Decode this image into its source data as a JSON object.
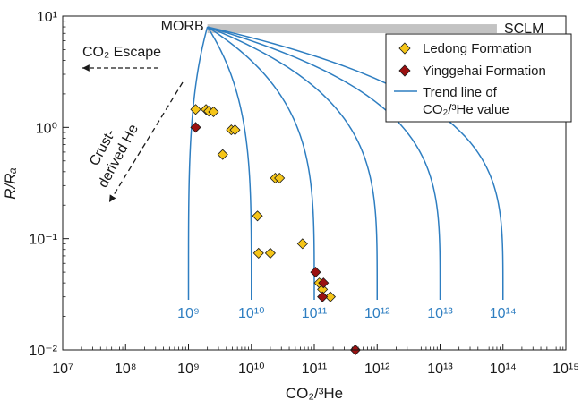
{
  "chart_data": {
    "type": "scatter",
    "xlabel": "CO₂/³He",
    "ylabel": "R/Rₐ",
    "x_scale": "log",
    "y_scale": "log",
    "xlim": [
      10000000.0,
      1000000000000000.0
    ],
    "ylim": [
      0.01,
      10
    ],
    "x_tick_labels": [
      "10⁷",
      "10⁸",
      "10⁹",
      "10¹⁰",
      "10¹¹",
      "10¹²",
      "10¹³",
      "10¹⁴",
      "10¹⁵"
    ],
    "y_tick_labels": [
      "10⁻²",
      "10⁻¹",
      "10⁰",
      "10¹"
    ],
    "series": [
      {
        "name": "Ledong Formation",
        "marker": "diamond",
        "color": "#F5C518",
        "points": [
          {
            "x": 1300000000.0,
            "y": 1.45
          },
          {
            "x": 1900000000.0,
            "y": 1.45
          },
          {
            "x": 2100000000.0,
            "y": 1.4
          },
          {
            "x": 2500000000.0,
            "y": 1.38
          },
          {
            "x": 3500000000.0,
            "y": 0.57
          },
          {
            "x": 4800000000.0,
            "y": 0.95
          },
          {
            "x": 5500000000.0,
            "y": 0.95
          },
          {
            "x": 12500000000.0,
            "y": 0.16
          },
          {
            "x": 13000000000.0,
            "y": 0.074
          },
          {
            "x": 20000000000.0,
            "y": 0.074
          },
          {
            "x": 24000000000.0,
            "y": 0.35
          },
          {
            "x": 28000000000.0,
            "y": 0.35
          },
          {
            "x": 65000000000.0,
            "y": 0.09
          },
          {
            "x": 120000000000.0,
            "y": 0.04
          },
          {
            "x": 135000000000.0,
            "y": 0.035
          },
          {
            "x": 180000000000.0,
            "y": 0.03
          }
        ]
      },
      {
        "name": "Yinggehai Formation",
        "marker": "diamond",
        "color": "#9B1111",
        "points": [
          {
            "x": 1300000000.0,
            "y": 1.0
          },
          {
            "x": 105000000000.0,
            "y": 0.05
          },
          {
            "x": 140000000000.0,
            "y": 0.04
          },
          {
            "x": 135000000000.0,
            "y": 0.03
          },
          {
            "x": 450000000000.0,
            "y": 0.01
          }
        ]
      }
    ],
    "trend_lines": {
      "name": "Trend line of CO₂/³He value",
      "color": "#2E7EC1",
      "values": [
        1000000000.0,
        10000000000.0,
        100000000000.0,
        1000000000000.0,
        10000000000000.0,
        100000000000000.0
      ],
      "labels": [
        "10⁹",
        "10¹⁰",
        "10¹¹",
        "10¹²",
        "10¹³",
        "10¹⁴"
      ],
      "start_label": "MORB",
      "start_point": {
        "x": 2000000000.0,
        "y": 8
      }
    },
    "sclm_bar": {
      "label": "SCLM",
      "x_start": 2000000000.0,
      "x_end": 80000000000000.0,
      "y": 8,
      "color": "#c3c3c3"
    },
    "annotations": {
      "co2_escape": "CO₂ Escape",
      "crust_line1": "Crust-",
      "crust_line2": "derived He"
    },
    "legend": {
      "position": "top-right",
      "trend_line_label_1": "Trend line of",
      "trend_line_label_2": "CO₂/³He value"
    }
  }
}
